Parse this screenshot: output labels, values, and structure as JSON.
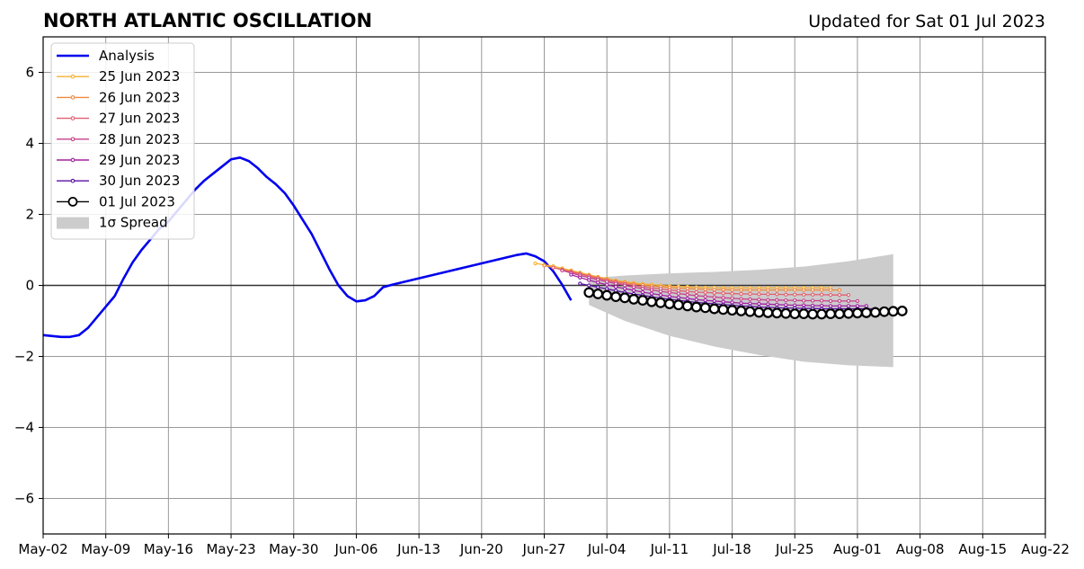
{
  "chart_data": {
    "type": "line",
    "title": "NORTH ATLANTIC OSCILLATION",
    "subtitle": "Updated for Sat 01 Jul 2023",
    "xlabel": "",
    "ylabel": "",
    "ylim": [
      -7,
      7
    ],
    "xlim": [
      "2023-05-02",
      "2023-08-22"
    ],
    "grid": true,
    "legend_position": "top-left",
    "x_ticks": [
      "May-02",
      "May-09",
      "May-16",
      "May-23",
      "May-30",
      "Jun-06",
      "Jun-13",
      "Jun-20",
      "Jun-27",
      "Jul-04",
      "Jul-11",
      "Jul-18",
      "Jul-25",
      "Aug-01",
      "Aug-08",
      "Aug-15",
      "Aug-22"
    ],
    "y_ticks": [
      -6,
      -4,
      -2,
      0,
      2,
      4,
      6
    ],
    "y_tick_labels": [
      "−6",
      "−4",
      "−2",
      "0",
      "2",
      "4",
      "6"
    ],
    "analysis": {
      "name": "Analysis",
      "color": "#0000ee",
      "dates": [
        "2023-05-02",
        "2023-05-04",
        "2023-05-05",
        "2023-05-06",
        "2023-05-07",
        "2023-05-08",
        "2023-05-09",
        "2023-05-10",
        "2023-05-11",
        "2023-05-12",
        "2023-05-13",
        "2023-05-14",
        "2023-05-15",
        "2023-05-16",
        "2023-05-17",
        "2023-05-18",
        "2023-05-19",
        "2023-05-20",
        "2023-05-21",
        "2023-05-22",
        "2023-05-23",
        "2023-05-24",
        "2023-05-25",
        "2023-05-26",
        "2023-05-27",
        "2023-05-28",
        "2023-05-29",
        "2023-05-30",
        "2023-05-31",
        "2023-06-01",
        "2023-06-02",
        "2023-06-03",
        "2023-06-04",
        "2023-06-05",
        "2023-06-06",
        "2023-06-07",
        "2023-06-08",
        "2023-06-09",
        "2023-06-10",
        "2023-06-11",
        "2023-06-12",
        "2023-06-13",
        "2023-06-14",
        "2023-06-15",
        "2023-06-16",
        "2023-06-17",
        "2023-06-18",
        "2023-06-19",
        "2023-06-20",
        "2023-06-21",
        "2023-06-22",
        "2023-06-23",
        "2023-06-24",
        "2023-06-25",
        "2023-06-26",
        "2023-06-27",
        "2023-06-28",
        "2023-06-29",
        "2023-06-30"
      ],
      "values": [
        -1.4,
        -1.45,
        -1.45,
        -1.4,
        -1.2,
        -0.9,
        -0.6,
        -0.3,
        0.2,
        0.65,
        1.0,
        1.3,
        1.6,
        1.8,
        2.1,
        2.4,
        2.7,
        2.95,
        3.15,
        3.35,
        3.55,
        3.6,
        3.5,
        3.3,
        3.05,
        2.85,
        2.6,
        2.25,
        1.85,
        1.45,
        0.95,
        0.45,
        0.0,
        -0.3,
        -0.45,
        -0.42,
        -0.3,
        -0.05,
        0.02,
        0.08,
        0.14,
        0.2,
        0.26,
        0.32,
        0.38,
        0.44,
        0.5,
        0.56,
        0.62,
        0.68,
        0.74,
        0.8,
        0.86,
        0.9,
        0.82,
        0.68,
        0.4,
        0.02,
        -0.42
      ]
    },
    "forecasts": [
      {
        "name": "25 Jun 2023",
        "color": "#f7b030",
        "start": "2023-06-26",
        "values": [
          0.62,
          0.58,
          0.54,
          0.48,
          0.42,
          0.36,
          0.3,
          0.24,
          0.19,
          0.14,
          0.1,
          0.07,
          0.04,
          0.02,
          0.0,
          -0.02,
          -0.03,
          -0.04,
          -0.05,
          -0.06,
          -0.06,
          -0.07,
          -0.07,
          -0.07,
          -0.07,
          -0.07,
          -0.07,
          -0.07,
          -0.07,
          -0.07,
          -0.07,
          -0.07,
          -0.07,
          -0.07
        ]
      },
      {
        "name": "26 Jun 2023",
        "color": "#ef8a40",
        "start": "2023-06-27",
        "values": [
          0.56,
          0.5,
          0.45,
          0.4,
          0.34,
          0.28,
          0.22,
          0.17,
          0.12,
          0.08,
          0.04,
          0.01,
          -0.02,
          -0.04,
          -0.06,
          -0.08,
          -0.09,
          -0.1,
          -0.11,
          -0.12,
          -0.12,
          -0.13,
          -0.13,
          -0.13,
          -0.13,
          -0.13,
          -0.13,
          -0.13,
          -0.13,
          -0.13,
          -0.13,
          -0.13,
          -0.13,
          -0.13
        ]
      },
      {
        "name": "27 Jun 2023",
        "color": "#e06070",
        "start": "2023-06-28",
        "values": [
          0.5,
          0.44,
          0.38,
          0.32,
          0.26,
          0.2,
          0.14,
          0.09,
          0.04,
          0.0,
          -0.04,
          -0.07,
          -0.1,
          -0.13,
          -0.15,
          -0.17,
          -0.19,
          -0.2,
          -0.21,
          -0.22,
          -0.23,
          -0.24,
          -0.24,
          -0.25,
          -0.25,
          -0.25,
          -0.26,
          -0.26,
          -0.26,
          -0.26,
          -0.26,
          -0.27,
          -0.27,
          -0.27
        ]
      },
      {
        "name": "28 Jun 2023",
        "color": "#c5408a",
        "start": "2023-06-29",
        "values": [
          0.42,
          0.35,
          0.28,
          0.22,
          0.16,
          0.1,
          0.05,
          0.0,
          -0.05,
          -0.09,
          -0.13,
          -0.17,
          -0.2,
          -0.23,
          -0.26,
          -0.29,
          -0.31,
          -0.33,
          -0.35,
          -0.36,
          -0.38,
          -0.39,
          -0.4,
          -0.41,
          -0.41,
          -0.42,
          -0.42,
          -0.43,
          -0.43,
          -0.43,
          -0.44,
          -0.44,
          -0.44,
          -0.44
        ]
      },
      {
        "name": "29 Jun 2023",
        "color": "#a020a0",
        "start": "2023-06-30",
        "values": [
          0.3,
          0.22,
          0.15,
          0.08,
          0.02,
          -0.04,
          -0.09,
          -0.14,
          -0.19,
          -0.23,
          -0.27,
          -0.31,
          -0.34,
          -0.37,
          -0.4,
          -0.42,
          -0.44,
          -0.46,
          -0.48,
          -0.5,
          -0.51,
          -0.52,
          -0.53,
          -0.54,
          -0.55,
          -0.56,
          -0.56,
          -0.57,
          -0.57,
          -0.58,
          -0.58,
          -0.58,
          -0.58,
          -0.58
        ]
      },
      {
        "name": "30 Jun 2023",
        "color": "#5a10a0",
        "start": "2023-07-01",
        "values": [
          0.05,
          0.0,
          -0.05,
          -0.1,
          -0.15,
          -0.2,
          -0.24,
          -0.28,
          -0.32,
          -0.36,
          -0.39,
          -0.42,
          -0.45,
          -0.48,
          -0.5,
          -0.52,
          -0.54,
          -0.56,
          -0.58,
          -0.59,
          -0.61,
          -0.62,
          -0.63,
          -0.64,
          -0.64,
          -0.65,
          -0.65,
          -0.66,
          -0.66,
          -0.66,
          -0.66,
          -0.66,
          -0.66,
          -0.66
        ]
      },
      {
        "name": "01 Jul 2023",
        "color": "#000000",
        "marker": "open-circle",
        "start": "2023-07-02",
        "values": [
          -0.2,
          -0.24,
          -0.28,
          -0.32,
          -0.35,
          -0.39,
          -0.42,
          -0.46,
          -0.49,
          -0.52,
          -0.55,
          -0.58,
          -0.61,
          -0.63,
          -0.66,
          -0.68,
          -0.7,
          -0.72,
          -0.74,
          -0.76,
          -0.77,
          -0.78,
          -0.79,
          -0.8,
          -0.8,
          -0.81,
          -0.81,
          -0.8,
          -0.8,
          -0.79,
          -0.78,
          -0.77,
          -0.76,
          -0.74,
          -0.73,
          -0.72
        ]
      }
    ],
    "spread": {
      "name": "1σ Spread",
      "color": "#cccccc",
      "dates": [
        "2023-07-02",
        "2023-07-06",
        "2023-07-11",
        "2023-07-16",
        "2023-07-21",
        "2023-07-26",
        "2023-07-31",
        "2023-08-05"
      ],
      "upper": [
        0.2,
        0.28,
        0.34,
        0.38,
        0.44,
        0.53,
        0.68,
        0.88
      ],
      "lower": [
        -0.55,
        -1.0,
        -1.42,
        -1.72,
        -1.96,
        -2.15,
        -2.25,
        -2.3
      ]
    }
  }
}
